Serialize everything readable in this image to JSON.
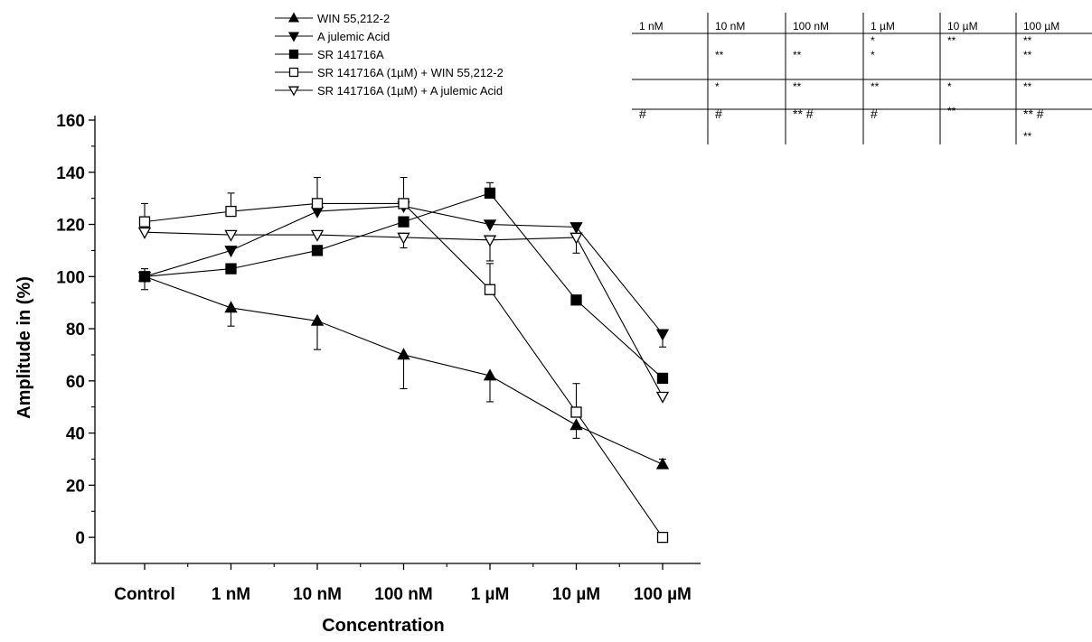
{
  "chart_data": {
    "type": "line",
    "title": "",
    "xlabel": "Concentration",
    "ylabel": "Amplitude in (%)",
    "categories": [
      "Control",
      "1 nM",
      "10 nM",
      "100 nM",
      "1 µM",
      "10 µM",
      "100 µM"
    ],
    "ylim": [
      -10,
      160
    ],
    "yticks": [
      0,
      20,
      40,
      60,
      80,
      100,
      120,
      140,
      160
    ],
    "grid": false,
    "legend_position": "top-center",
    "series": [
      {
        "name": "WIN 55,212-2",
        "marker": "triangle-up-filled",
        "values": [
          100,
          88,
          83,
          70,
          62,
          43,
          28
        ],
        "err_up": [
          3,
          0,
          0,
          0,
          0,
          0,
          2
        ],
        "err_down": [
          0,
          7,
          11,
          13,
          10,
          5,
          0
        ]
      },
      {
        "name": "A julemic Acid",
        "marker": "triangle-down-filled",
        "values": [
          100,
          110,
          125,
          127,
          120,
          119,
          78
        ],
        "err_up": [
          0,
          0,
          0,
          0,
          0,
          0,
          0
        ],
        "err_down": [
          0,
          0,
          0,
          0,
          0,
          0,
          5
        ]
      },
      {
        "name": "SR 141716A",
        "marker": "square-filled",
        "values": [
          100,
          103,
          110,
          121,
          132,
          91,
          61
        ],
        "err_up": [
          0,
          0,
          0,
          0,
          4,
          0,
          0
        ],
        "err_down": [
          5,
          0,
          0,
          0,
          0,
          0,
          0
        ]
      },
      {
        "name": "SR 141716A (1µM) + WIN 55,212-2",
        "marker": "square-open",
        "values": [
          121,
          125,
          128,
          128,
          95,
          48,
          0
        ],
        "err_up": [
          7,
          7,
          10,
          10,
          10,
          11,
          0
        ],
        "err_down": [
          0,
          0,
          0,
          0,
          0,
          0,
          0
        ]
      },
      {
        "name": "SR 141716A (1µM) + A julemic Acid",
        "marker": "triangle-down-open",
        "values": [
          117,
          116,
          116,
          115,
          114,
          115,
          54
        ],
        "err_up": [
          0,
          0,
          0,
          0,
          0,
          0,
          0
        ],
        "err_down": [
          0,
          0,
          0,
          4,
          8,
          6,
          0
        ]
      }
    ]
  },
  "significance_table": {
    "headers": [
      "1 nM",
      "10 nM",
      "100 nM",
      "1 µM",
      "10 µM",
      "100 µM"
    ],
    "rows": [
      [
        "",
        "",
        "",
        "*",
        "**",
        "**"
      ],
      [
        "",
        "**",
        "**",
        "*",
        "",
        "**"
      ],
      [
        "",
        "*",
        "**",
        "**",
        "*",
        "**"
      ],
      [
        "#",
        "#",
        "** #",
        "#",
        "**",
        "** #"
      ],
      [
        "",
        "",
        "",
        "",
        "",
        "**"
      ]
    ]
  }
}
